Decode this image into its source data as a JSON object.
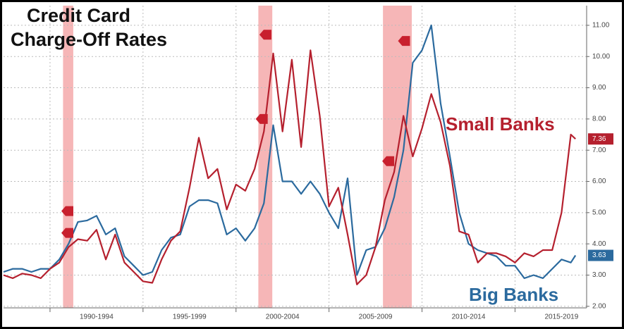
{
  "chart_data": {
    "type": "line",
    "title": "Credit Card Charge-Off Rates",
    "title_lines": [
      "Credit Card",
      "Charge-Off Rates"
    ],
    "x": [
      1987.5,
      1988,
      1988.5,
      1989,
      1989.5,
      1990,
      1990.5,
      1991,
      1991.5,
      1992,
      1992.5,
      1993,
      1993.5,
      1994,
      1994.5,
      1995,
      1995.5,
      1996,
      1996.5,
      1997,
      1997.5,
      1998,
      1998.5,
      1999,
      1999.5,
      2000,
      2000.5,
      2001,
      2001.5,
      2002,
      2002.5,
      2003,
      2003.5,
      2004,
      2004.5,
      2005,
      2005.5,
      2006,
      2006.5,
      2007,
      2007.5,
      2008,
      2008.5,
      2009,
      2009.5,
      2010,
      2010.5,
      2011,
      2011.5,
      2012,
      2012.5,
      2013,
      2013.5,
      2014,
      2014.5,
      2015,
      2015.5,
      2016,
      2016.5,
      2017,
      2017.5,
      2018,
      2018.25
    ],
    "series": [
      {
        "name": "Small Banks",
        "color": "#b5202e",
        "end_label": "7.36",
        "values": [
          3.0,
          2.9,
          3.05,
          3.0,
          2.9,
          3.2,
          3.4,
          3.9,
          4.15,
          4.1,
          4.45,
          3.5,
          4.3,
          3.4,
          3.1,
          2.8,
          2.75,
          3.5,
          4.1,
          4.4,
          5.8,
          7.4,
          6.1,
          6.4,
          5.1,
          5.9,
          5.7,
          6.4,
          7.6,
          10.1,
          7.6,
          9.9,
          7.1,
          10.2,
          8.1,
          5.2,
          5.8,
          4.3,
          2.7,
          3.0,
          3.9,
          5.4,
          6.3,
          8.1,
          6.8,
          7.7,
          8.8,
          7.9,
          6.5,
          4.4,
          4.3,
          3.4,
          3.7,
          3.7,
          3.6,
          3.4,
          3.7,
          3.6,
          3.8,
          3.8,
          5.0,
          7.5,
          7.36
        ]
      },
      {
        "name": "Big Banks",
        "color": "#2b6a9e",
        "end_label": "3.63",
        "values": [
          3.1,
          3.2,
          3.2,
          3.1,
          3.2,
          3.2,
          3.5,
          4.0,
          4.7,
          4.75,
          4.9,
          4.3,
          4.5,
          3.6,
          3.3,
          3.0,
          3.1,
          3.8,
          4.2,
          4.3,
          5.2,
          5.4,
          5.4,
          5.3,
          4.3,
          4.5,
          4.1,
          4.5,
          5.3,
          7.8,
          6.0,
          6.0,
          5.6,
          6.0,
          5.6,
          5.0,
          4.5,
          6.1,
          3.0,
          3.8,
          3.9,
          4.5,
          5.5,
          7.0,
          9.8,
          10.2,
          11.0,
          8.5,
          6.8,
          5.0,
          4.0,
          3.8,
          3.7,
          3.6,
          3.3,
          3.3,
          2.9,
          3.0,
          2.9,
          3.2,
          3.5,
          3.4,
          3.63
        ]
      }
    ],
    "xlim": [
      1987.5,
      2018.85
    ],
    "xticks": [
      {
        "value": 1992.5,
        "label": "1990-1994"
      },
      {
        "value": 1997.5,
        "label": "1995-1999"
      },
      {
        "value": 2002.5,
        "label": "2000-2004"
      },
      {
        "value": 2007.5,
        "label": "2005-2009"
      },
      {
        "value": 2012.5,
        "label": "2010-2014"
      },
      {
        "value": 2017.5,
        "label": "2015-2019"
      }
    ],
    "xgrid": [
      1990,
      1995,
      2000,
      2005,
      2010,
      2015
    ],
    "ylim": [
      1.95,
      11.63
    ],
    "yticks": [
      {
        "value": 2,
        "label": "2.00"
      },
      {
        "value": 3,
        "label": "3.00"
      },
      {
        "value": 4,
        "label": "4.00"
      },
      {
        "value": 5,
        "label": "5.00"
      },
      {
        "value": 6,
        "label": "6.00"
      },
      {
        "value": 7,
        "label": "7.00"
      },
      {
        "value": 8,
        "label": "8.00"
      },
      {
        "value": 9,
        "label": "9.00"
      },
      {
        "value": 10,
        "label": "10.00"
      },
      {
        "value": 11,
        "label": "11.00"
      }
    ],
    "grid": true,
    "shaded_ranges": [
      [
        1990.7,
        1991.25
      ],
      [
        2001.2,
        2001.95
      ],
      [
        2007.9,
        2009.45
      ]
    ],
    "shade_color": "#f4a9aa",
    "markers": [
      {
        "x": 1990.95,
        "y": 5.05
      },
      {
        "x": 1990.95,
        "y": 4.35
      },
      {
        "x": 2001.6,
        "y": 10.7
      },
      {
        "x": 2001.4,
        "y": 8.0
      },
      {
        "x": 2008.2,
        "y": 6.65
      },
      {
        "x": 2009.05,
        "y": 10.5
      }
    ],
    "marker_color": "#c8202e"
  }
}
